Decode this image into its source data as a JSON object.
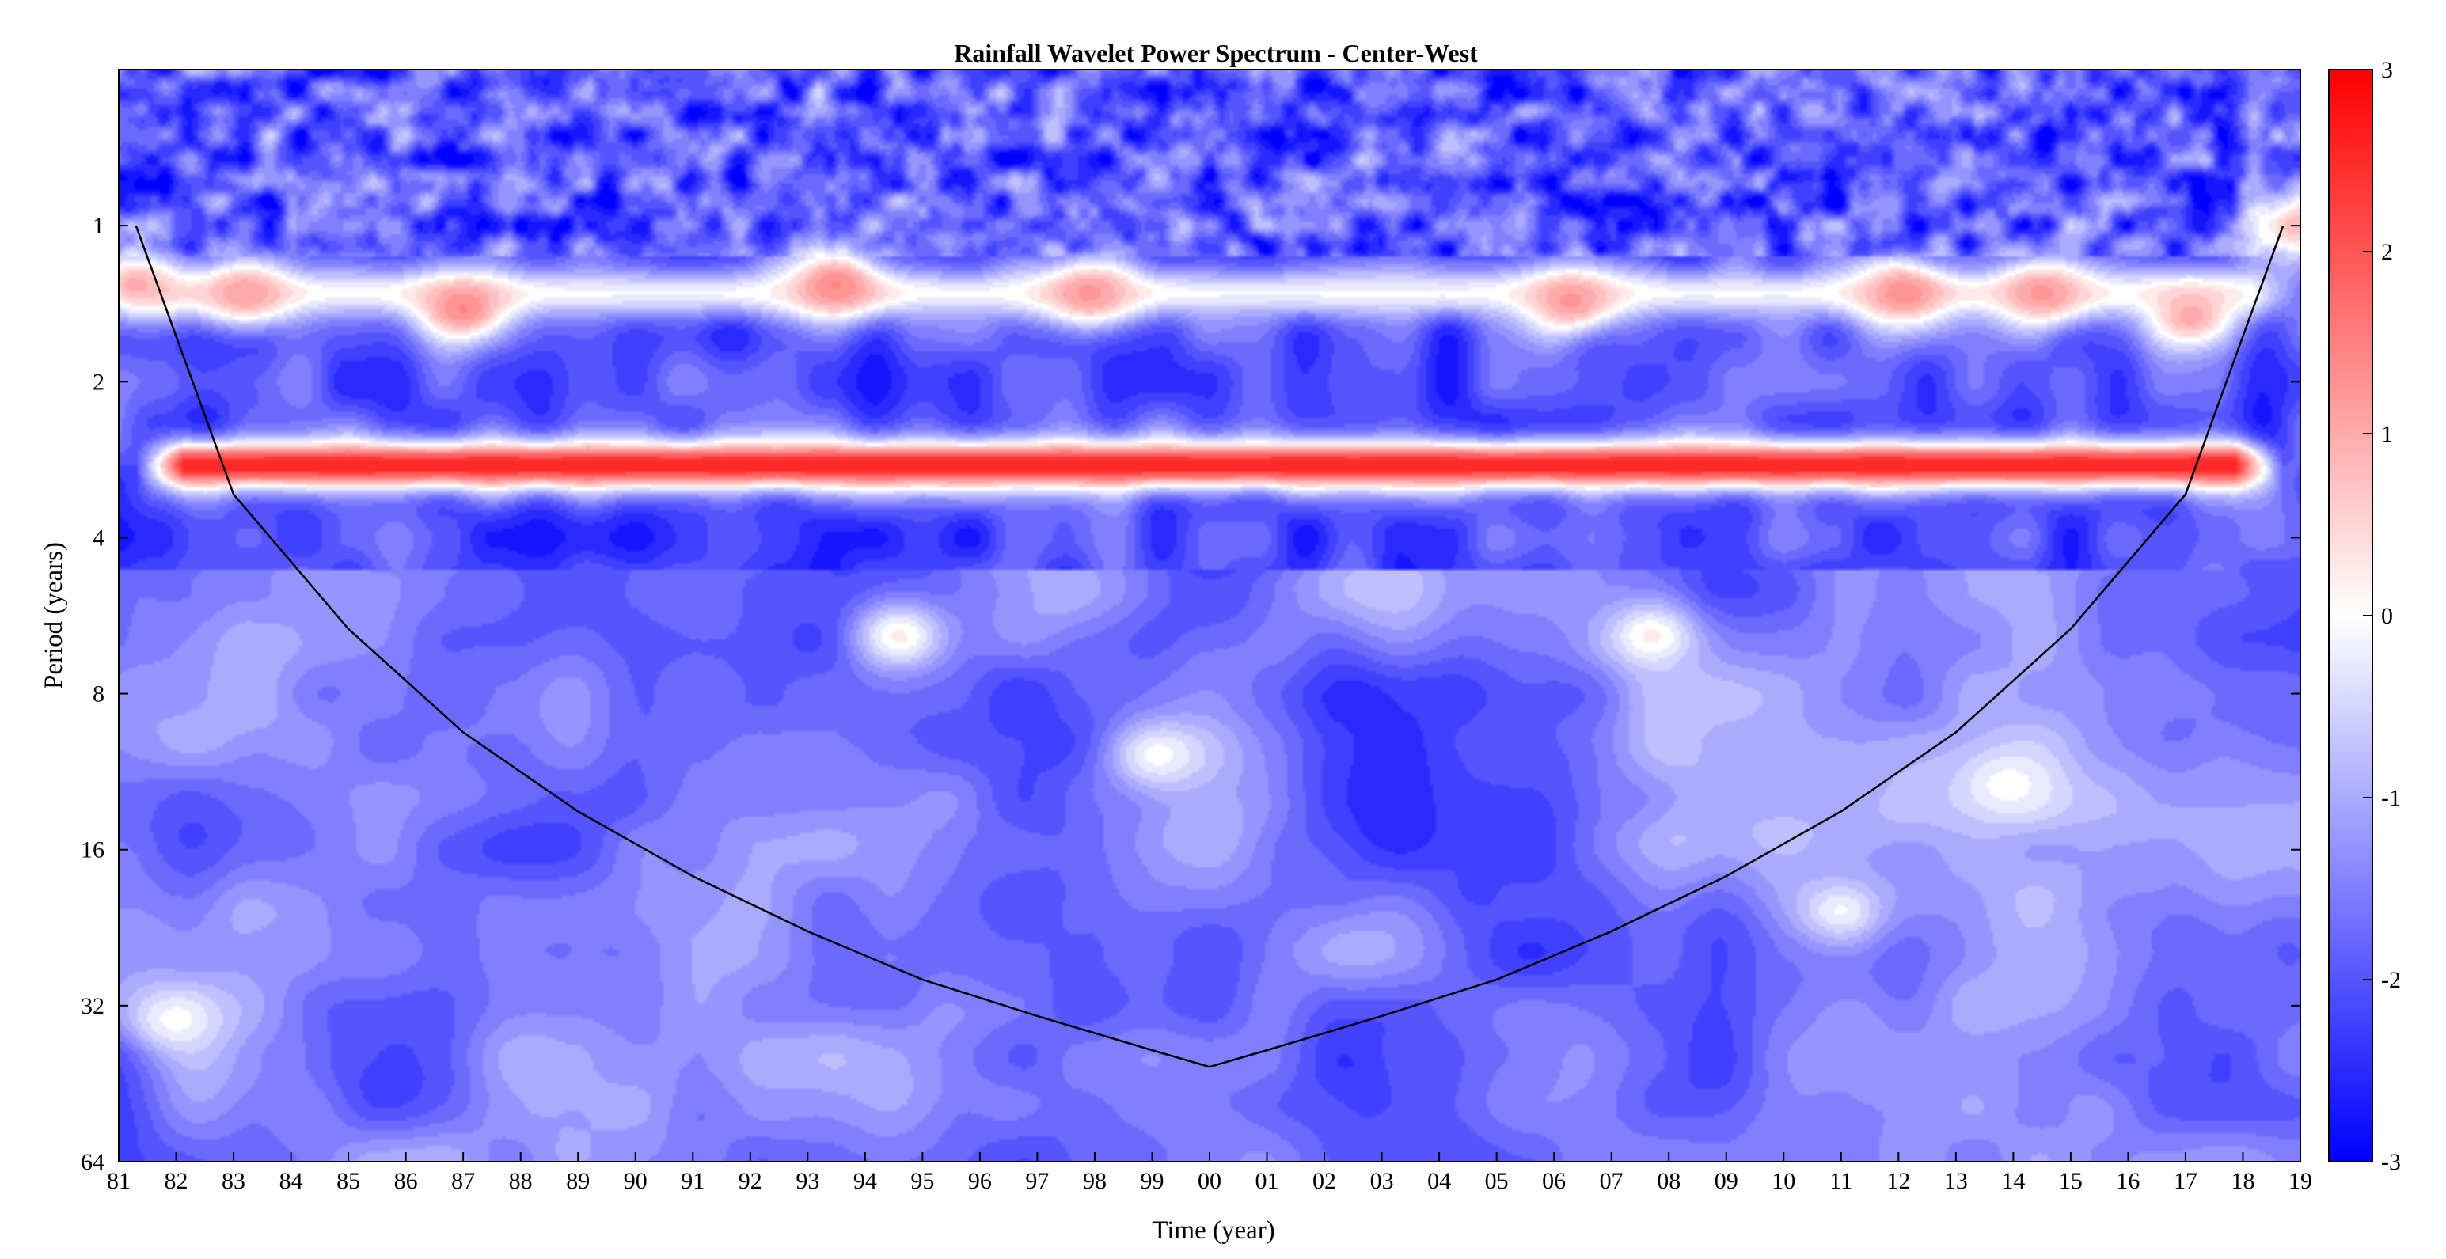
{
  "chart_data": {
    "type": "heatmap",
    "title": "Rainfall Wavelet Power Spectrum - Center-West",
    "xlabel": "Time (year)",
    "ylabel": "Period (years)",
    "x_ticks": [
      "81",
      "82",
      "83",
      "84",
      "85",
      "86",
      "87",
      "88",
      "89",
      "90",
      "91",
      "92",
      "93",
      "94",
      "95",
      "96",
      "97",
      "98",
      "99",
      "00",
      "01",
      "02",
      "03",
      "04",
      "05",
      "06",
      "07",
      "08",
      "09",
      "10",
      "11",
      "12",
      "13",
      "14",
      "15",
      "16",
      "17",
      "18",
      "19"
    ],
    "x_range": [
      1981,
      2019
    ],
    "y_ticks": [
      "1",
      "2",
      "4",
      "8",
      "16",
      "32",
      "64"
    ],
    "y_range_log2": [
      -1,
      6
    ],
    "y_scale": "log2",
    "colorbar": {
      "ticks": [
        "3",
        "2",
        "1",
        "0",
        "-1",
        "-2",
        "-3"
      ],
      "range": [
        -3,
        3
      ],
      "low_color": "#0000ff",
      "mid_color": "#ffffff",
      "high_color": "#ff0000"
    },
    "features": [
      {
        "kind": "band",
        "x0": 1981.3,
        "x1": 2018.7,
        "period_center": 2.9,
        "value": 2.6
      },
      {
        "kind": "band",
        "x0": 1981,
        "x1": 2019,
        "period_center": 1.35,
        "value": -0.1
      },
      {
        "kind": "blob",
        "x": 1981.3,
        "period": 1.3,
        "value": 1.0
      },
      {
        "kind": "blob",
        "x": 1983.2,
        "period": 1.35,
        "value": 1.1
      },
      {
        "kind": "blob",
        "x": 1987,
        "period": 1.45,
        "value": 1.4
      },
      {
        "kind": "blob",
        "x": 1993.5,
        "period": 1.3,
        "value": 1.4
      },
      {
        "kind": "blob",
        "x": 1997.9,
        "period": 1.35,
        "value": 1.2
      },
      {
        "kind": "blob",
        "x": 2006.3,
        "period": 1.4,
        "value": 1.2
      },
      {
        "kind": "blob",
        "x": 2012.1,
        "period": 1.35,
        "value": 1.3
      },
      {
        "kind": "blob",
        "x": 2014.5,
        "period": 1.35,
        "value": 1.2
      },
      {
        "kind": "blob",
        "x": 2017.1,
        "period": 1.5,
        "value": 1.0
      },
      {
        "kind": "blob",
        "x": 2018.9,
        "period": 1.0,
        "value": 0.8
      },
      {
        "kind": "blob",
        "x": 1994.6,
        "period": 6.2,
        "value": 0.2
      },
      {
        "kind": "blob",
        "x": 2007.7,
        "period": 6.2,
        "value": 0.2
      },
      {
        "kind": "blob",
        "x": 1999.1,
        "period": 10.5,
        "value": 0.0
      },
      {
        "kind": "blob",
        "x": 2013.9,
        "period": 12.0,
        "value": 0.0
      },
      {
        "kind": "blob",
        "x": 2011,
        "period": 21,
        "value": -0.1
      },
      {
        "kind": "blob",
        "x": 1982,
        "period": 34,
        "value": 0.0
      }
    ],
    "cone_of_influence": {
      "x": [
        1981.3,
        1983,
        1985,
        1987,
        1989,
        1991,
        1993,
        1995,
        1997,
        1999,
        2000,
        2001,
        2003,
        2005,
        2007,
        2009,
        2011,
        2013,
        2015,
        2017,
        2018.7
      ],
      "period": [
        1.0,
        3.3,
        6.0,
        9.5,
        13.5,
        18.0,
        23.0,
        28.5,
        33.5,
        39.0,
        42.0,
        39.0,
        33.5,
        28.5,
        23.0,
        18.0,
        13.5,
        9.5,
        6.0,
        3.3,
        1.0
      ]
    }
  }
}
